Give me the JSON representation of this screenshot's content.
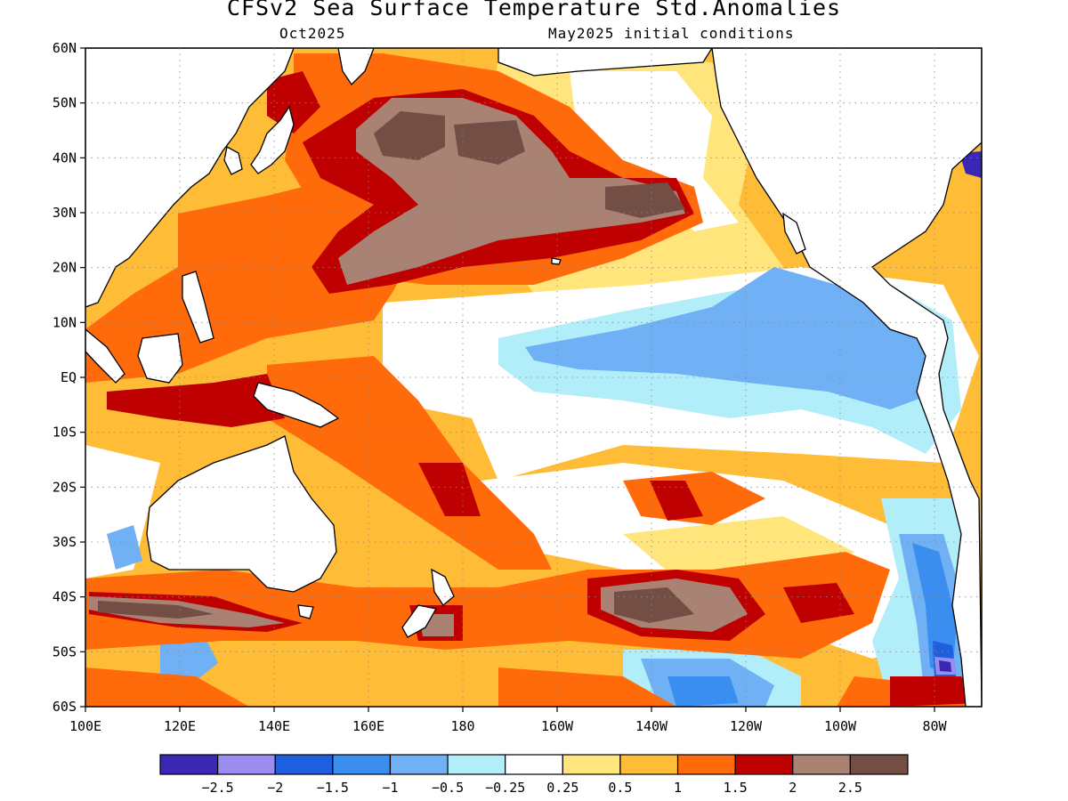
{
  "title": "CFSv2 Sea Surface Temperature Std.Anomalies",
  "subtitle_left": "Oct2025",
  "subtitle_right": "May2025 initial conditions",
  "map": {
    "lat_range": [
      -60,
      60
    ],
    "lon_range_east": [
      100,
      290
    ],
    "lat_ticks": [
      "60N",
      "50N",
      "40N",
      "30N",
      "20N",
      "10N",
      "EQ",
      "10S",
      "20S",
      "30S",
      "40S",
      "50S",
      "60S"
    ],
    "lon_ticks": [
      "100E",
      "120E",
      "140E",
      "160E",
      "180",
      "160W",
      "140W",
      "120W",
      "100W",
      "80W"
    ],
    "grid": true,
    "land_color": "#ffffff",
    "coast_color": "#000000"
  },
  "colorbar": {
    "colors": [
      "#3b27b5",
      "#9b8cf0",
      "#1e5fe0",
      "#3a8ef0",
      "#70b1f5",
      "#b2eef9",
      "#ffffff",
      "#ffe57c",
      "#ffbc37",
      "#ff6a0a",
      "#bf0000",
      "#a98273",
      "#724e45"
    ],
    "labels": [
      "−2.5",
      "−2",
      "−1.5",
      "−1",
      "−0.5",
      "−0.25",
      "0.25",
      "0.5",
      "1",
      "1.5",
      "2",
      "2.5"
    ]
  }
}
